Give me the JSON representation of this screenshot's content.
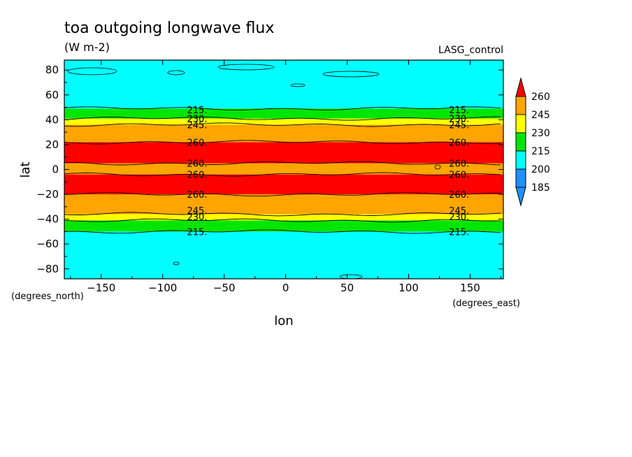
{
  "chart_data": {
    "type": "heatmap",
    "title": "toa outgoing longwave flux",
    "subtitle": "(W m-2)",
    "annotation": "LASG_control",
    "xlabel": "lon",
    "ylabel": "lat",
    "x_units": "(degrees_east)",
    "y_units": "(degrees_north)",
    "xlim": [
      -180,
      177
    ],
    "ylim": [
      -88,
      88
    ],
    "x_ticks": [
      -150,
      -100,
      -50,
      0,
      50,
      100,
      150
    ],
    "y_ticks": [
      -80,
      -60,
      -40,
      -20,
      0,
      20,
      40,
      60,
      80
    ],
    "colorbar": {
      "levels": [
        185,
        200,
        215,
        230,
        245,
        260
      ],
      "labels": [
        "185",
        "200",
        "215",
        "230",
        "245",
        "260"
      ],
      "colors": [
        "#1e90ff",
        "#1e90ff",
        "#00ffff",
        "#00e600",
        "#ffff00",
        "#ffa500",
        "#ff0000"
      ]
    },
    "bands": [
      {
        "from": -88,
        "to": -50,
        "value_range": "200-215",
        "color": "#00ffff"
      },
      {
        "from": -50,
        "to": -41,
        "value_range": "215-230",
        "color": "#00e600"
      },
      {
        "from": -41,
        "to": -36,
        "value_range": "230-245",
        "color": "#ffff00"
      },
      {
        "from": -36,
        "to": -20,
        "value_range": "245-260",
        "color": "#ffa500"
      },
      {
        "from": -20,
        "to": -4,
        "value_range": ">260",
        "color": "#ff0000"
      },
      {
        "from": -4,
        "to": 5,
        "value_range": "245-260",
        "color": "#ffa500"
      },
      {
        "from": 5,
        "to": 22,
        "value_range": ">260",
        "color": "#ff0000"
      },
      {
        "from": 22,
        "to": 36,
        "value_range": "245-260",
        "color": "#ffa500"
      },
      {
        "from": 36,
        "to": 41,
        "value_range": "230-245",
        "color": "#ffff00"
      },
      {
        "from": 41,
        "to": 49,
        "value_range": "215-230",
        "color": "#00e600"
      },
      {
        "from": 49,
        "to": 88,
        "value_range": "200-215",
        "color": "#00ffff"
      }
    ],
    "contour_labels": [
      {
        "text": "215.",
        "lat": 48,
        "lons": [
          -72,
          141
        ]
      },
      {
        "text": "230.",
        "lat": 41,
        "lons": [
          -72,
          141
        ]
      },
      {
        "text": "245.",
        "lat": 36,
        "lons": [
          -72,
          141
        ]
      },
      {
        "text": "260.",
        "lat": 22,
        "lons": [
          -72,
          141
        ]
      },
      {
        "text": "260.",
        "lat": 5,
        "lons": [
          -72,
          141
        ]
      },
      {
        "text": "260.",
        "lat": -4,
        "lons": [
          -72,
          141
        ]
      },
      {
        "text": "260.",
        "lat": -20,
        "lons": [
          -72,
          141
        ]
      },
      {
        "text": "245.",
        "lat": -33,
        "lons": [
          -72,
          141
        ]
      },
      {
        "text": "230.",
        "lat": -38,
        "lons": [
          -72,
          141
        ]
      },
      {
        "text": "215.",
        "lat": -50,
        "lons": [
          -72,
          141
        ]
      }
    ]
  }
}
